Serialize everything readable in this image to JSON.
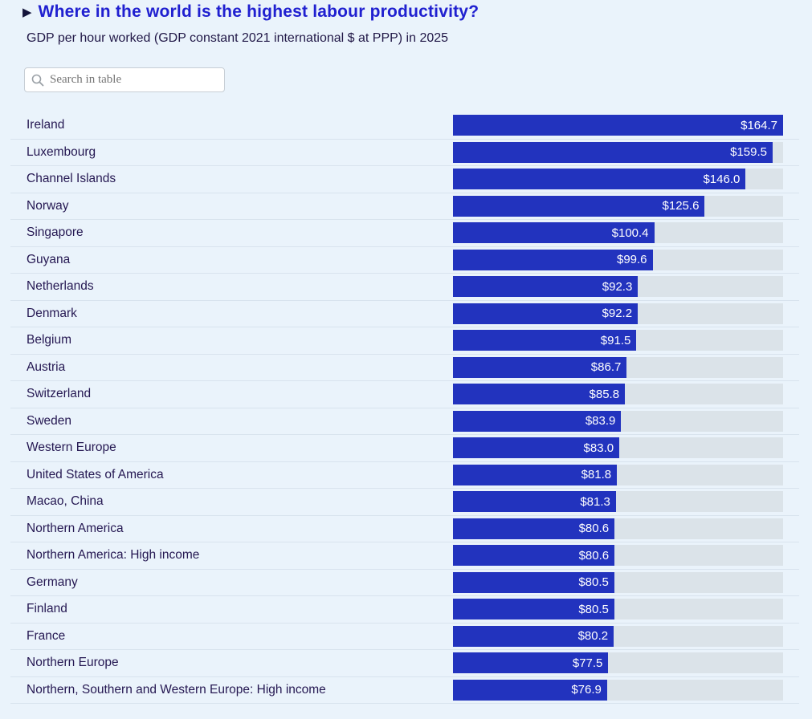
{
  "header": {
    "title": "Where in the world is the highest labour productivity?",
    "subtitle": "GDP per hour worked (GDP constant 2021 international $ at PPP) in 2025"
  },
  "search": {
    "placeholder": "Search in table"
  },
  "colors": {
    "background": "#eaf3fb",
    "title_blue": "#2020d0",
    "label_text": "#251852",
    "bar_fill": "#2233be",
    "bar_track": "#dbe3e9",
    "bar_value_text": "#ffffff",
    "row_separator": "#d8e3ee"
  },
  "chart_data": {
    "type": "bar",
    "orientation": "horizontal",
    "title": "Where in the world is the highest labour productivity?",
    "subtitle": "GDP per hour worked (GDP constant 2021 international $ at PPP) in 2025",
    "value_prefix": "$",
    "max_value": 164.7,
    "xlim": [
      0,
      164.7
    ],
    "grid": false,
    "legend": false,
    "categories": [
      "Ireland",
      "Luxembourg",
      "Channel Islands",
      "Norway",
      "Singapore",
      "Guyana",
      "Netherlands",
      "Denmark",
      "Belgium",
      "Austria",
      "Switzerland",
      "Sweden",
      "Western Europe",
      "United States of America",
      "Macao, China",
      "Northern America",
      "Northern America: High income",
      "Germany",
      "Finland",
      "France",
      "Northern Europe",
      "Northern, Southern and Western Europe: High income"
    ],
    "values": [
      164.7,
      159.5,
      146.0,
      125.6,
      100.4,
      99.6,
      92.3,
      92.2,
      91.5,
      86.7,
      85.8,
      83.9,
      83.0,
      81.8,
      81.3,
      80.6,
      80.6,
      80.5,
      80.5,
      80.2,
      77.5,
      76.9
    ],
    "value_labels": [
      "$164.7",
      "$159.5",
      "$146.0",
      "$125.6",
      "$100.4",
      "$99.6",
      "$92.3",
      "$92.2",
      "$91.5",
      "$86.7",
      "$85.8",
      "$83.9",
      "$83.0",
      "$81.8",
      "$81.3",
      "$80.6",
      "$80.6",
      "$80.5",
      "$80.5",
      "$80.2",
      "$77.5",
      "$76.9"
    ]
  }
}
